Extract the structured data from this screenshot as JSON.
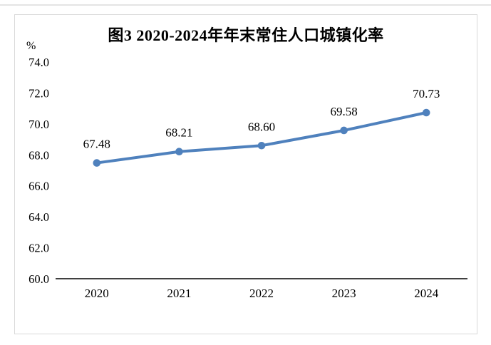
{
  "chart_data": {
    "type": "line",
    "title": "图3 2020-2024年年末常住人口城镇化率",
    "unit_label": "%",
    "categories": [
      "2020",
      "2021",
      "2022",
      "2023",
      "2024"
    ],
    "values": [
      67.48,
      68.21,
      68.6,
      69.58,
      70.73
    ],
    "data_labels": [
      "67.48",
      "68.21",
      "68.60",
      "69.58",
      "70.73"
    ],
    "ylim": [
      60.0,
      74.0
    ],
    "ytick_step": 2.0,
    "ytick_labels": [
      "74.0",
      "72.0",
      "70.0",
      "68.0",
      "66.0",
      "64.0",
      "62.0",
      "60.0"
    ],
    "grid": false,
    "legend_position": "none",
    "colors": {
      "line": "#4F81BD",
      "marker": "#4F81BD",
      "text": "#000000",
      "axis": "#000000",
      "frame_border": "#D9D9D9"
    }
  }
}
